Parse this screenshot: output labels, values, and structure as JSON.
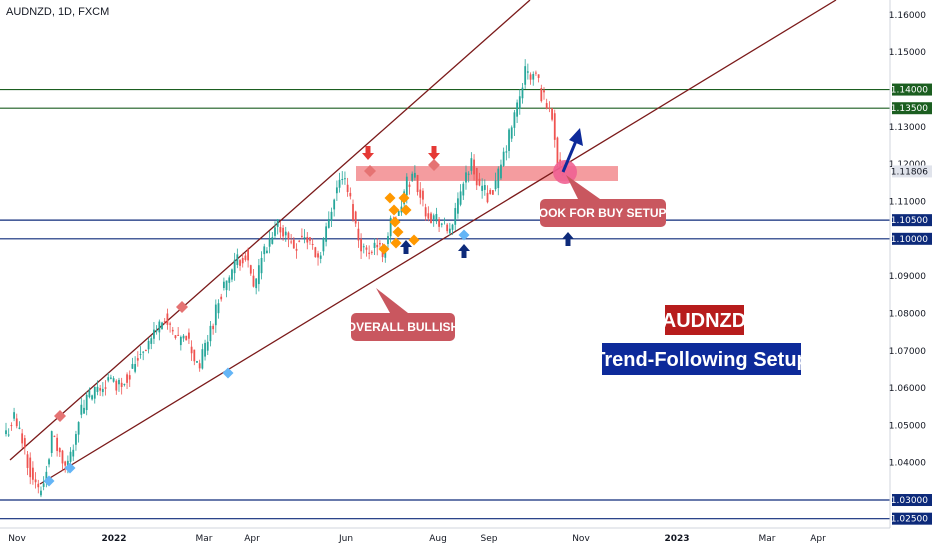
{
  "header": {
    "symbol": "AUDNZD, 1D, FXCM"
  },
  "colors": {
    "up": "#26a69a",
    "down": "#ef5350",
    "resistance_zone": "#f28b8e",
    "green_level": "#1b5e20",
    "blue_level": "#0d2a7a",
    "channel": "#7b1a1a",
    "callout": "#c9575f",
    "title_red": "#b71c1c",
    "title_blue": "#0d2a9a",
    "current_price_tag": "#e0e3eb"
  },
  "chart_data": {
    "type": "candlestick",
    "x_ticks": [
      {
        "label": "Nov",
        "bold": false
      },
      {
        "label": "2022",
        "bold": true
      },
      {
        "label": "Mar",
        "bold": false
      },
      {
        "label": "Apr",
        "bold": false
      },
      {
        "label": "Jun",
        "bold": false
      },
      {
        "label": "Aug",
        "bold": false
      },
      {
        "label": "Sep",
        "bold": false
      },
      {
        "label": "Nov",
        "bold": false
      },
      {
        "label": "2023",
        "bold": true
      },
      {
        "label": "Mar",
        "bold": false
      },
      {
        "label": "Apr",
        "bold": false
      }
    ],
    "y_ticks": [
      "1.16000",
      "1.15000",
      "1.13000",
      "1.12000",
      "1.11000",
      "1.09000",
      "1.08000",
      "1.07000",
      "1.06000",
      "1.05000",
      "1.04000"
    ],
    "ylim": [
      1.0225,
      1.164
    ],
    "current_price": "1.11806",
    "horizontal_levels": [
      {
        "value": 1.14,
        "label": "1.14000",
        "color": "green"
      },
      {
        "value": 1.135,
        "label": "1.13500",
        "color": "green"
      },
      {
        "value": 1.105,
        "label": "1.10500",
        "color": "blue"
      },
      {
        "value": 1.1,
        "label": "1.10000",
        "color": "blue"
      },
      {
        "value": 1.03,
        "label": "1.03000",
        "color": "blue"
      },
      {
        "value": 1.025,
        "label": "1.02500",
        "color": "blue"
      }
    ],
    "resistance_zone": [
      1.1155,
      1.1195
    ],
    "close_path": [
      [
        0,
        1.048
      ],
      [
        3,
        1.052
      ],
      [
        6,
        1.046
      ],
      [
        9,
        1.038
      ],
      [
        12,
        1.032
      ],
      [
        14,
        1.035
      ],
      [
        17,
        1.047
      ],
      [
        19,
        1.044
      ],
      [
        22,
        1.038
      ],
      [
        24,
        1.042
      ],
      [
        27,
        1.052
      ],
      [
        30,
        1.057
      ],
      [
        34,
        1.059
      ],
      [
        38,
        1.062
      ],
      [
        42,
        1.061
      ],
      [
        46,
        1.064
      ],
      [
        50,
        1.07
      ],
      [
        53,
        1.072
      ],
      [
        56,
        1.076
      ],
      [
        59,
        1.079
      ],
      [
        61,
        1.075
      ],
      [
        64,
        1.072
      ],
      [
        67,
        1.074
      ],
      [
        70,
        1.068
      ],
      [
        72,
        1.066
      ],
      [
        74,
        1.071
      ],
      [
        77,
        1.078
      ],
      [
        80,
        1.086
      ],
      [
        83,
        1.09
      ],
      [
        86,
        1.094
      ],
      [
        89,
        1.096
      ],
      [
        92,
        1.086
      ],
      [
        95,
        1.095
      ],
      [
        98,
        1.098
      ],
      [
        101,
        1.104
      ],
      [
        104,
        1.101
      ],
      [
        107,
        1.098
      ],
      [
        110,
        1.101
      ],
      [
        113,
        1.099
      ],
      [
        116,
        1.095
      ],
      [
        119,
        1.102
      ],
      [
        122,
        1.112
      ],
      [
        125,
        1.117
      ],
      [
        128,
        1.11
      ],
      [
        131,
        1.1
      ],
      [
        134,
        1.096
      ],
      [
        137,
        1.099
      ],
      [
        140,
        1.096
      ],
      [
        143,
        1.104
      ],
      [
        146,
        1.106
      ],
      [
        149,
        1.115
      ],
      [
        152,
        1.117
      ],
      [
        155,
        1.109
      ],
      [
        158,
        1.106
      ],
      [
        161,
        1.105
      ],
      [
        164,
        1.102
      ],
      [
        167,
        1.106
      ],
      [
        170,
        1.116
      ],
      [
        173,
        1.12
      ],
      [
        176,
        1.114
      ],
      [
        179,
        1.112
      ],
      [
        182,
        1.114
      ],
      [
        185,
        1.122
      ],
      [
        188,
        1.13
      ],
      [
        191,
        1.138
      ],
      [
        193,
        1.145
      ],
      [
        195,
        1.143
      ],
      [
        197,
        1.144
      ],
      [
        199,
        1.139
      ],
      [
        201,
        1.136
      ],
      [
        203,
        1.133
      ],
      [
        205,
        1.122
      ],
      [
        207,
        1.1181
      ]
    ]
  },
  "annotations": {
    "callout_buy": "LOOK FOR BUY SETUPS",
    "callout_bullish": "OVERALL BULLISH",
    "title_pair": "AUDNZD",
    "title_setup": "Trend-Following Setup"
  }
}
